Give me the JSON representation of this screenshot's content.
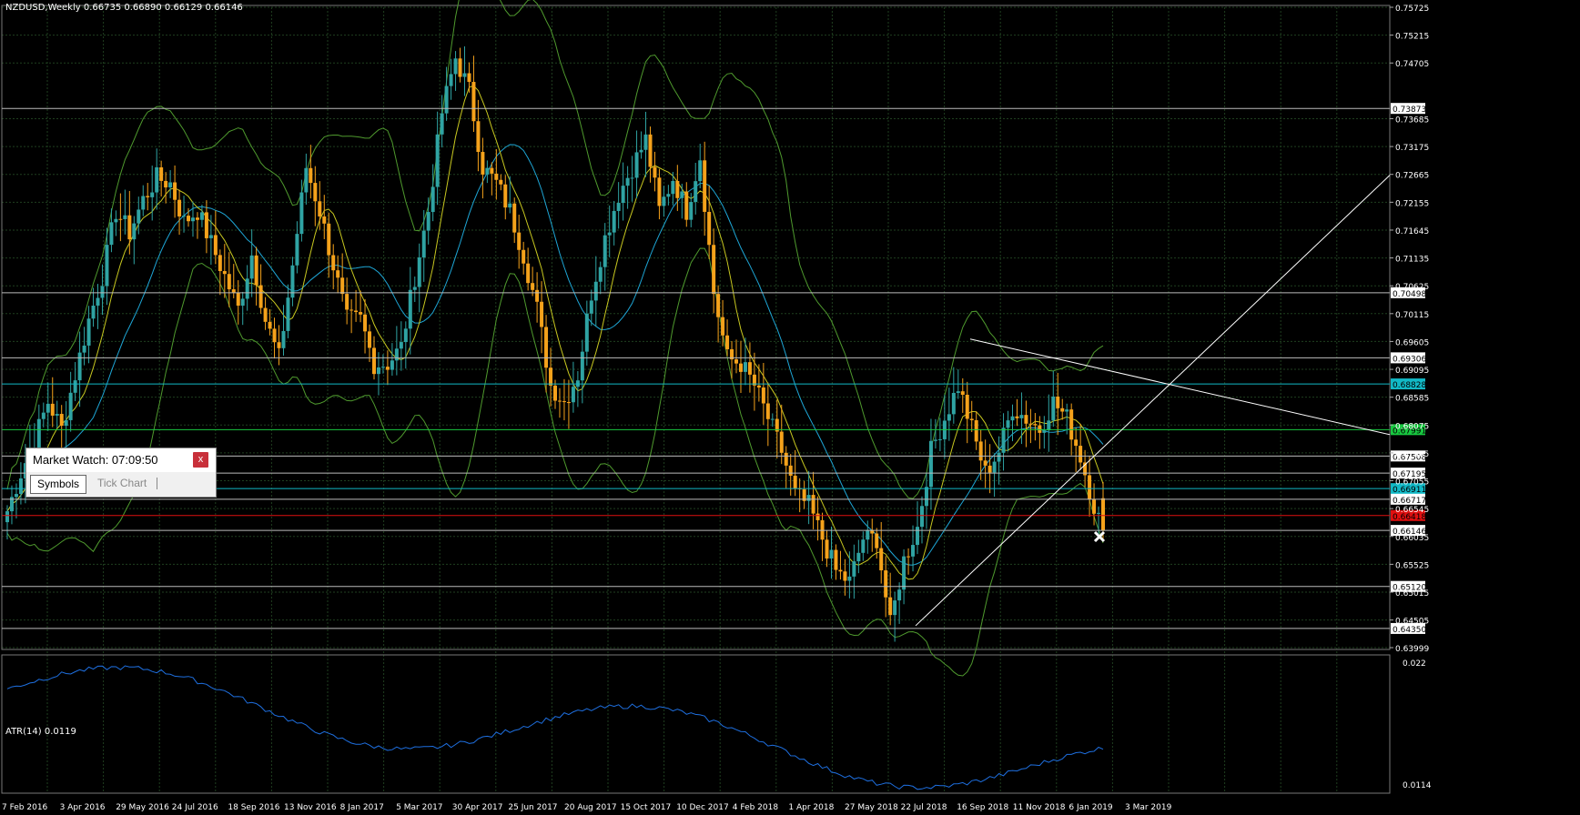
{
  "symbol_header": "NZDUSD,Weekly  0.66735 0.66890 0.66129 0.66146",
  "atr_header": "ATR(14) 0.0119",
  "market_watch": {
    "title": "Market Watch: 07:09:50",
    "close_label": "x",
    "tabs": [
      "Symbols",
      "Tick Chart"
    ]
  },
  "colors": {
    "grid": "#1f3f1f",
    "bull_candle": "#2fa3a3",
    "bear_candle": "#f5a21b",
    "bollinger": "#4f9a2e",
    "ma_fast": "#c8c820",
    "ma_slow": "#1ea6d6",
    "atr_line": "#1e6fe0",
    "support_line": "#ffffff",
    "current_level_line": "#e01010",
    "cyan_level": "#12b9c6",
    "green_level": "#18c840"
  },
  "price_scale_labels": [
    "0.75725",
    "0.75215",
    "0.74705",
    "0.73685",
    "0.73175",
    "0.72665",
    "0.72155",
    "0.71645",
    "0.71135",
    "0.70625",
    "0.70115",
    "0.69605",
    "0.69095",
    "0.68585",
    "0.68075",
    "0.67565",
    "0.67055",
    "0.66545",
    "0.66035",
    "0.65525",
    "0.65015",
    "0.64505",
    "0.63999"
  ],
  "price_badges": [
    {
      "text": "0.73873",
      "type": "white"
    },
    {
      "text": "0.70498",
      "type": "white"
    },
    {
      "text": "0.69306",
      "type": "white"
    },
    {
      "text": "0.68828",
      "type": "cyan"
    },
    {
      "text": "0.67991",
      "type": "green"
    },
    {
      "text": "0.67508",
      "type": "white"
    },
    {
      "text": "0.67195",
      "type": "white"
    },
    {
      "text": "0.66911",
      "type": "cyan"
    },
    {
      "text": "0.66717",
      "type": "white"
    },
    {
      "text": "0.66418",
      "type": "red"
    },
    {
      "text": "0.66146",
      "type": "white"
    },
    {
      "text": "0.65120",
      "type": "white"
    },
    {
      "text": "0.64350",
      "type": "white"
    }
  ],
  "atr_scale_labels": [
    "0.022",
    "0.0114"
  ],
  "time_labels": [
    "7 Feb 2016",
    "3 Apr 2016",
    "29 May 2016",
    "24 Jul 2016",
    "18 Sep 2016",
    "13 Nov 2016",
    "8 Jan 2017",
    "5 Mar 2017",
    "30 Apr 2017",
    "25 Jun 2017",
    "20 Aug 2017",
    "15 Oct 2017",
    "10 Dec 2017",
    "4 Feb 2018",
    "1 Apr 2018",
    "27 May 2018",
    "22 Jul 2018",
    "16 Sep 2018",
    "11 Nov 2018",
    "6 Jan 2019",
    "3 Mar 2019"
  ],
  "chart_data": {
    "type": "candlestick",
    "symbol": "NZDUSD",
    "timeframe": "Weekly",
    "last_bar": {
      "open": 0.66735,
      "high": 0.6689,
      "low": 0.66129,
      "close": 0.66146
    },
    "price_range": [
      0.63999,
      0.75725
    ],
    "close_path": [
      [
        0,
        0.665
      ],
      [
        3,
        0.672
      ],
      [
        6,
        0.678
      ],
      [
        9,
        0.685
      ],
      [
        12,
        0.68
      ],
      [
        15,
        0.69
      ],
      [
        18,
        0.7
      ],
      [
        21,
        0.708
      ],
      [
        24,
        0.72
      ],
      [
        27,
        0.716
      ],
      [
        30,
        0.722
      ],
      [
        33,
        0.726
      ],
      [
        36,
        0.725
      ],
      [
        39,
        0.718
      ],
      [
        42,
        0.72
      ],
      [
        45,
        0.714
      ],
      [
        48,
        0.708
      ],
      [
        51,
        0.702
      ],
      [
        54,
        0.712
      ],
      [
        57,
        0.7
      ],
      [
        60,
        0.693
      ],
      [
        63,
        0.71
      ],
      [
        66,
        0.728
      ],
      [
        69,
        0.72
      ],
      [
        72,
        0.71
      ],
      [
        75,
        0.7
      ],
      [
        78,
        0.7
      ],
      [
        81,
        0.692
      ],
      [
        84,
        0.692
      ],
      [
        87,
        0.695
      ],
      [
        90,
        0.708
      ],
      [
        93,
        0.72
      ],
      [
        96,
        0.738
      ],
      [
        99,
        0.748
      ],
      [
        102,
        0.742
      ],
      [
        105,
        0.728
      ],
      [
        108,
        0.725
      ],
      [
        111,
        0.72
      ],
      [
        114,
        0.712
      ],
      [
        117,
        0.702
      ],
      [
        120,
        0.688
      ],
      [
        123,
        0.685
      ],
      [
        126,
        0.69
      ],
      [
        129,
        0.705
      ],
      [
        132,
        0.715
      ],
      [
        135,
        0.723
      ],
      [
        138,
        0.728
      ],
      [
        141,
        0.733
      ],
      [
        144,
        0.72
      ],
      [
        147,
        0.726
      ],
      [
        150,
        0.72
      ],
      [
        153,
        0.73
      ],
      [
        156,
        0.705
      ],
      [
        159,
        0.693
      ],
      [
        162,
        0.692
      ],
      [
        165,
        0.688
      ],
      [
        168,
        0.682
      ],
      [
        171,
        0.676
      ],
      [
        174,
        0.668
      ],
      [
        177,
        0.666
      ],
      [
        180,
        0.66
      ],
      [
        183,
        0.654
      ],
      [
        186,
        0.652
      ],
      [
        189,
        0.66
      ],
      [
        192,
        0.66
      ],
      [
        195,
        0.644
      ],
      [
        198,
        0.656
      ],
      [
        201,
        0.662
      ],
      [
        204,
        0.676
      ],
      [
        207,
        0.682
      ],
      [
        210,
        0.688
      ],
      [
        213,
        0.68
      ],
      [
        216,
        0.672
      ],
      [
        219,
        0.676
      ],
      [
        222,
        0.684
      ],
      [
        225,
        0.682
      ],
      [
        228,
        0.68
      ],
      [
        231,
        0.685
      ],
      [
        234,
        0.682
      ],
      [
        237,
        0.675
      ],
      [
        240,
        0.666
      ],
      [
        242,
        0.6615
      ]
    ]
  }
}
